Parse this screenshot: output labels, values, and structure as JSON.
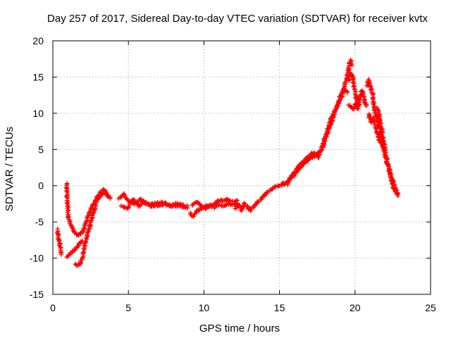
{
  "chart_data": {
    "type": "scatter",
    "title": "Day 257 of 2017, Sidereal Day-to-day VTEC variation (SDTVAR) for receiver kvtx",
    "xlabel": "GPS time / hours",
    "ylabel": "SDTVAR / TECUs",
    "xlim": [
      0,
      25
    ],
    "ylim": [
      -15,
      20
    ],
    "x_ticks": [
      0,
      5,
      10,
      15,
      20,
      25
    ],
    "y_ticks": [
      -15,
      -10,
      -5,
      0,
      5,
      10,
      15,
      20
    ],
    "x_tick_labels": [
      "0",
      "5",
      "10",
      "15",
      "20",
      "25"
    ],
    "y_tick_labels": [
      "-15",
      "-10",
      "-5",
      "0",
      "5",
      "10",
      "15",
      "20"
    ],
    "grid": true,
    "marker": "plus",
    "series": [
      {
        "name": "kvtx",
        "color": "#ff0000",
        "tracks": [
          [
            [
              0.3,
              -6.0
            ],
            [
              0.35,
              -7.0
            ],
            [
              0.45,
              -8.0
            ],
            [
              0.5,
              -8.8
            ],
            [
              0.55,
              -9.5
            ]
          ],
          [
            [
              0.92,
              0.3
            ],
            [
              0.97,
              -2.5
            ],
            [
              1.05,
              -4.5
            ],
            [
              1.2,
              -5.5
            ],
            [
              1.4,
              -6.3
            ],
            [
              1.6,
              -6.8
            ],
            [
              1.8,
              -6.8
            ],
            [
              2.0,
              -6.3
            ],
            [
              2.2,
              -5.0
            ],
            [
              2.45,
              -3.5
            ],
            [
              2.75,
              -2.2
            ],
            [
              3.05,
              -1.2
            ],
            [
              3.3,
              -0.5
            ],
            [
              3.5,
              -0.8
            ],
            [
              3.7,
              -1.5
            ]
          ],
          [
            [
              0.95,
              -9.8
            ],
            [
              1.2,
              -9.3
            ],
            [
              1.45,
              -8.8
            ],
            [
              1.7,
              -8.2
            ],
            [
              1.95,
              -7.6
            ]
          ],
          [
            [
              1.45,
              -10.8
            ],
            [
              1.6,
              -11.0
            ],
            [
              1.8,
              -10.8
            ],
            [
              1.98,
              -9.8
            ],
            [
              2.15,
              -8.0
            ],
            [
              2.4,
              -6.0
            ],
            [
              2.6,
              -4.3
            ],
            [
              2.8,
              -2.9
            ],
            [
              3.0,
              -1.8
            ],
            [
              3.2,
              -1.2
            ],
            [
              3.4,
              -1.0
            ],
            [
              3.6,
              -1.4
            ],
            [
              3.8,
              -1.8
            ]
          ],
          [
            [
              4.4,
              -1.8
            ],
            [
              4.7,
              -1.2
            ],
            [
              5.0,
              -2.0
            ],
            [
              5.4,
              -2.6
            ],
            [
              5.8,
              -1.8
            ],
            [
              6.2,
              -2.6
            ],
            [
              6.7,
              -2.5
            ],
            [
              7.2,
              -2.2
            ],
            [
              7.7,
              -2.8
            ],
            [
              8.2,
              -2.4
            ],
            [
              8.6,
              -3.0
            ],
            [
              8.9,
              -2.8
            ]
          ],
          [
            [
              4.5,
              -2.7
            ],
            [
              4.9,
              -3.2
            ],
            [
              5.3,
              -1.9
            ],
            [
              5.7,
              -2.8
            ],
            [
              6.1,
              -2.2
            ],
            [
              6.5,
              -2.9
            ],
            [
              7.0,
              -2.7
            ],
            [
              7.5,
              -2.6
            ],
            [
              8.0,
              -2.9
            ],
            [
              8.5,
              -2.6
            ],
            [
              8.9,
              -3.1
            ]
          ],
          [
            [
              9.1,
              -3.8
            ],
            [
              9.3,
              -4.3
            ],
            [
              9.5,
              -3.5
            ],
            [
              9.8,
              -3.2
            ],
            [
              10.1,
              -2.8
            ],
            [
              10.4,
              -2.9
            ],
            [
              10.7,
              -2.5
            ],
            [
              11.0,
              -2.0
            ],
            [
              11.3,
              -2.1
            ],
            [
              11.6,
              -1.9
            ],
            [
              11.9,
              -2.2
            ],
            [
              12.2,
              -2.0
            ]
          ],
          [
            [
              9.2,
              -2.8
            ],
            [
              9.5,
              -2.2
            ],
            [
              9.8,
              -2.7
            ],
            [
              10.1,
              -3.2
            ],
            [
              10.4,
              -2.6
            ],
            [
              10.7,
              -3.0
            ],
            [
              11.0,
              -2.6
            ],
            [
              11.3,
              -2.8
            ],
            [
              11.6,
              -2.5
            ],
            [
              11.9,
              -2.6
            ],
            [
              12.2,
              -2.4
            ]
          ],
          [
            [
              12.1,
              -3.2
            ],
            [
              12.3,
              -2.6
            ],
            [
              12.5,
              -3.4
            ],
            [
              12.7,
              -2.4
            ],
            [
              12.9,
              -3.0
            ],
            [
              13.1,
              -3.5
            ]
          ],
          [
            [
              13.1,
              -3.2
            ],
            [
              13.4,
              -2.6
            ],
            [
              13.7,
              -2.0
            ],
            [
              14.0,
              -1.3
            ],
            [
              14.3,
              -0.7
            ],
            [
              14.6,
              -0.3
            ],
            [
              14.9,
              0.0
            ],
            [
              15.2,
              0.1
            ],
            [
              15.5,
              0.4
            ],
            [
              15.7,
              1.0
            ],
            [
              15.9,
              1.6
            ],
            [
              16.1,
              2.2
            ],
            [
              16.3,
              2.8
            ],
            [
              16.5,
              3.2
            ],
            [
              16.7,
              3.6
            ],
            [
              16.9,
              4.0
            ],
            [
              17.1,
              4.4
            ],
            [
              17.3,
              4.5
            ],
            [
              17.5,
              4.2
            ],
            [
              17.6,
              4.6
            ]
          ],
          [
            [
              15.2,
              0.3
            ],
            [
              15.5,
              0.2
            ],
            [
              15.7,
              0.9
            ],
            [
              15.9,
              1.3
            ],
            [
              16.1,
              1.9
            ],
            [
              16.3,
              2.4
            ],
            [
              16.5,
              2.9
            ],
            [
              16.7,
              3.1
            ],
            [
              16.9,
              3.5
            ],
            [
              17.1,
              3.9
            ],
            [
              17.3,
              4.0
            ],
            [
              17.5,
              4.4
            ]
          ],
          [
            [
              17.55,
              3.8
            ],
            [
              17.7,
              4.8
            ],
            [
              17.9,
              6.0
            ],
            [
              18.1,
              7.3
            ],
            [
              18.3,
              8.5
            ],
            [
              18.5,
              9.6
            ],
            [
              18.7,
              10.6
            ],
            [
              18.9,
              11.5
            ],
            [
              19.1,
              12.6
            ],
            [
              19.3,
              13.8
            ],
            [
              19.45,
              14.8
            ],
            [
              19.55,
              15.8
            ],
            [
              19.65,
              16.9
            ],
            [
              19.72,
              17.3
            ],
            [
              19.8,
              16.6
            ]
          ],
          [
            [
              17.8,
              4.9
            ],
            [
              18.0,
              6.2
            ],
            [
              18.2,
              7.5
            ],
            [
              18.4,
              8.6
            ],
            [
              18.6,
              9.8
            ],
            [
              18.8,
              10.9
            ],
            [
              19.0,
              11.8
            ],
            [
              19.2,
              12.7
            ],
            [
              19.35,
              13.3
            ],
            [
              19.5,
              12.9
            ]
          ],
          [
            [
              19.55,
              14.5
            ],
            [
              19.7,
              15.5
            ],
            [
              19.85,
              15.0
            ],
            [
              19.95,
              13.6
            ],
            [
              20.05,
              12.4
            ],
            [
              20.15,
              11.5
            ],
            [
              20.25,
              11.0
            ],
            [
              20.35,
              12.2
            ],
            [
              20.45,
              13.2
            ],
            [
              20.55,
              12.6
            ],
            [
              20.65,
              11.5
            ],
            [
              20.75,
              11.0
            ]
          ],
          [
            [
              19.6,
              11.2
            ],
            [
              19.75,
              10.8
            ],
            [
              19.9,
              10.6
            ],
            [
              20.05,
              11.4
            ],
            [
              20.2,
              10.6
            ]
          ],
          [
            [
              20.8,
              13.8
            ],
            [
              20.9,
              14.6
            ],
            [
              21.0,
              13.8
            ],
            [
              21.1,
              13.2
            ],
            [
              21.2,
              12.0
            ],
            [
              21.3,
              10.6
            ],
            [
              21.4,
              9.8
            ],
            [
              21.5,
              9.0
            ],
            [
              21.6,
              8.2
            ],
            [
              21.7,
              7.3
            ],
            [
              21.8,
              6.4
            ],
            [
              21.9,
              5.4
            ],
            [
              22.0,
              4.5
            ],
            [
              22.1,
              3.6
            ],
            [
              22.2,
              2.7
            ],
            [
              22.3,
              1.8
            ],
            [
              22.4,
              1.0
            ],
            [
              22.5,
              0.2
            ],
            [
              22.6,
              -0.5
            ],
            [
              22.75,
              -0.9
            ],
            [
              22.85,
              -1.1
            ]
          ],
          [
            [
              20.9,
              10.0
            ],
            [
              21.05,
              8.8
            ],
            [
              21.2,
              9.4
            ],
            [
              21.35,
              8.2
            ],
            [
              21.5,
              7.0
            ],
            [
              21.65,
              6.1
            ],
            [
              21.8,
              5.8
            ],
            [
              21.95,
              4.6
            ],
            [
              22.1,
              3.4
            ],
            [
              22.3,
              2.0
            ],
            [
              22.5,
              0.6
            ],
            [
              22.7,
              -0.6
            ],
            [
              22.85,
              -1.4
            ]
          ],
          [
            [
              21.5,
              10.8
            ],
            [
              21.6,
              9.6
            ],
            [
              21.7,
              8.4
            ],
            [
              21.8,
              7.1
            ],
            [
              21.9,
              6.0
            ],
            [
              22.0,
              5.0
            ]
          ]
        ]
      }
    ]
  }
}
